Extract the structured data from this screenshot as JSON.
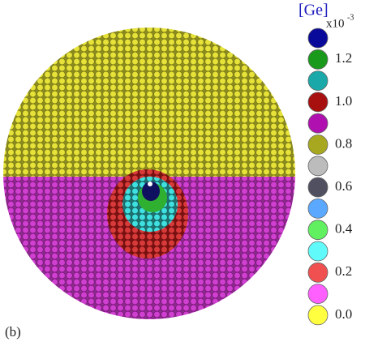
{
  "figure": {
    "label": "(b)",
    "legend": {
      "title": "[Ge]",
      "multiplier": "x10",
      "exponent": "-3",
      "labels": [
        "1.2",
        "1.0",
        "0.8",
        "0.6",
        "0.4",
        "0.2",
        "0.0"
      ]
    }
  }
}
